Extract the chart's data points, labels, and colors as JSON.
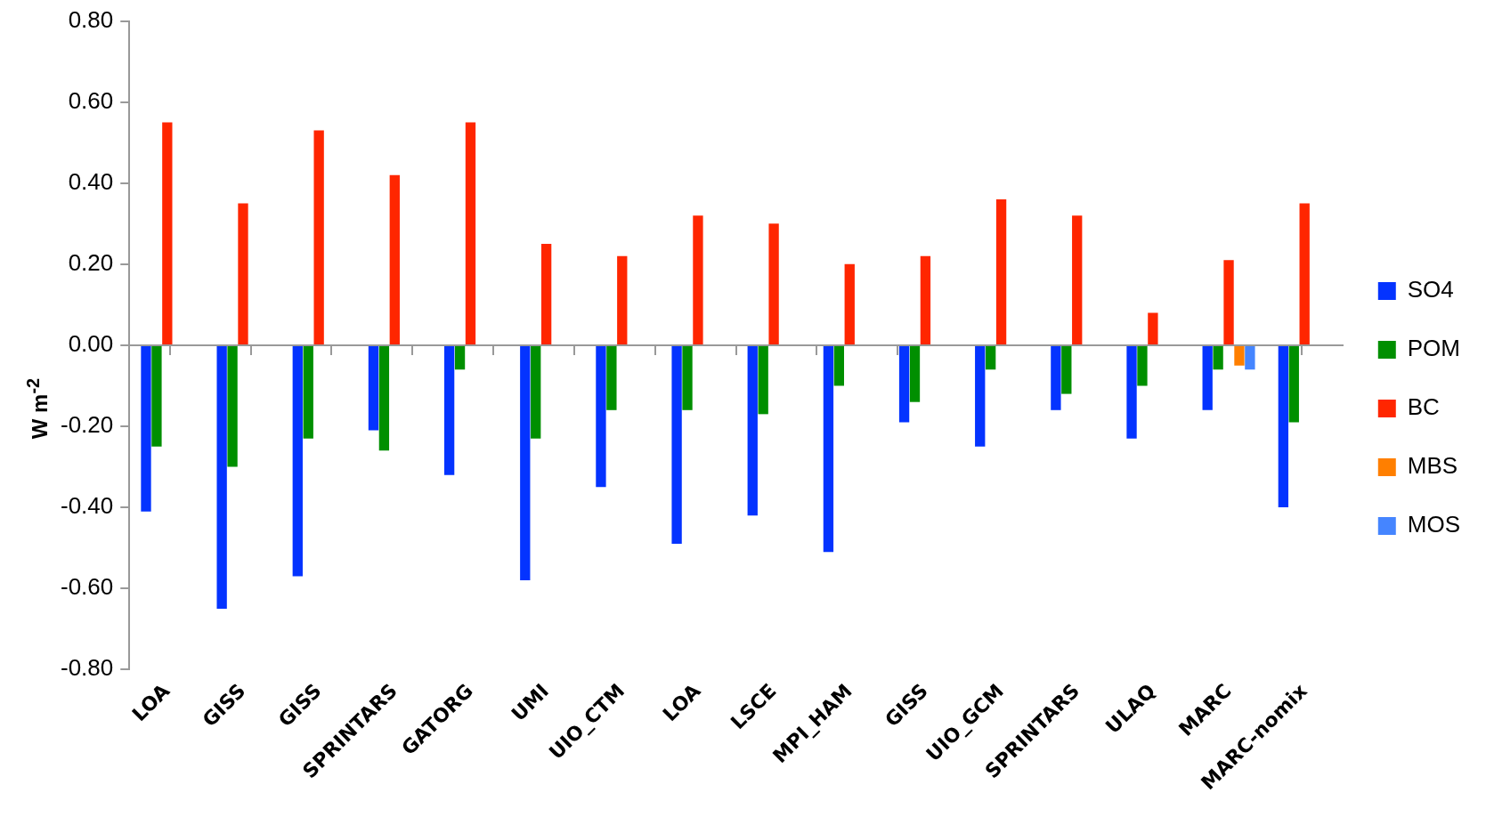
{
  "chart_data": {
    "type": "bar",
    "ylabel": "W m$^{-2}$",
    "categories": [
      "LOA",
      "GISS",
      "GISS",
      "SPRINTARS",
      "GATORG",
      "UMI",
      "UIO_CTM",
      "LOA",
      "LSCE",
      "MPI_HAM",
      "GISS",
      "UIO_GCM",
      "SPRINTARS",
      "ULAQ",
      "MARC",
      "MARC-nomix"
    ],
    "series": [
      {
        "name": "SO4",
        "color": "#0433ff",
        "values": [
          -0.41,
          -0.65,
          -0.57,
          -0.21,
          -0.32,
          -0.58,
          -0.35,
          -0.49,
          -0.42,
          -0.51,
          -0.19,
          -0.25,
          -0.16,
          -0.23,
          -0.16,
          -0.4
        ]
      },
      {
        "name": "POM",
        "color": "#008f00",
        "values": [
          -0.25,
          -0.3,
          -0.23,
          -0.26,
          -0.06,
          -0.23,
          -0.16,
          -0.16,
          -0.17,
          -0.1,
          -0.14,
          -0.06,
          -0.12,
          -0.1,
          -0.06,
          -0.19
        ]
      },
      {
        "name": "BC",
        "color": "#ff2600",
        "values": [
          0.55,
          0.35,
          0.53,
          0.42,
          0.55,
          0.25,
          0.22,
          0.32,
          0.3,
          0.2,
          0.22,
          0.36,
          0.32,
          0.08,
          0.21,
          0.35
        ]
      },
      {
        "name": "MBS",
        "color": "#ff7f00",
        "values": [
          null,
          null,
          null,
          null,
          null,
          null,
          null,
          null,
          null,
          null,
          null,
          null,
          null,
          null,
          -0.05,
          null
        ]
      },
      {
        "name": "MOS",
        "color": "#4585ff",
        "values": [
          null,
          null,
          null,
          null,
          null,
          null,
          null,
          null,
          null,
          null,
          null,
          null,
          null,
          null,
          -0.06,
          null
        ]
      }
    ],
    "ylim": [
      -0.8,
      0.8
    ],
    "yticks": [
      {
        "value": -0.8,
        "label": "-0.80"
      },
      {
        "value": -0.6,
        "label": "-0.60"
      },
      {
        "value": -0.4,
        "label": "-0.40"
      },
      {
        "value": -0.2,
        "label": "-0.20"
      },
      {
        "value": 0,
        "label": "0.00"
      },
      {
        "value": 0.2,
        "label": "0.20"
      },
      {
        "value": 0.4,
        "label": "0.40"
      },
      {
        "value": 0.6,
        "label": "0.60"
      },
      {
        "value": 0.8,
        "label": "0.80"
      }
    ],
    "legend": "right"
  }
}
